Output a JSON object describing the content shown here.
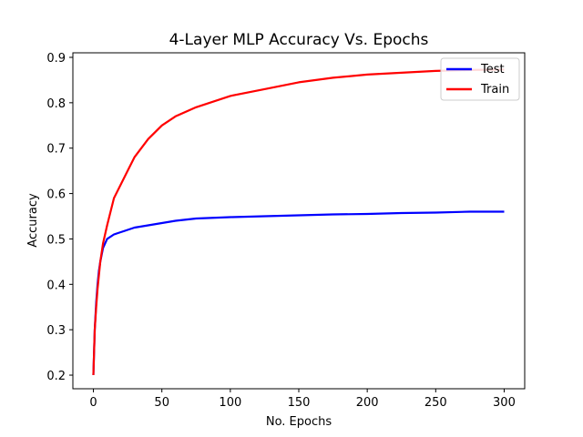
{
  "chart_data": {
    "type": "line",
    "title": "4-Layer MLP Accuracy Vs. Epochs",
    "xlabel": "No. Epochs",
    "ylabel": "Accuracy",
    "xlim": [
      -15,
      315
    ],
    "ylim": [
      0.17,
      0.91
    ],
    "xticks": [
      0,
      50,
      100,
      150,
      200,
      250,
      300
    ],
    "yticks": [
      0.2,
      0.3,
      0.4,
      0.5,
      0.6,
      0.7,
      0.8,
      0.9
    ],
    "grid": false,
    "legend_position": "top-right",
    "series": [
      {
        "name": "Test",
        "color": "#0000ff",
        "x": [
          0,
          1,
          2,
          3,
          4,
          5,
          7,
          10,
          15,
          20,
          25,
          30,
          40,
          50,
          60,
          75,
          100,
          125,
          150,
          175,
          200,
          225,
          250,
          275,
          300
        ],
        "y": [
          0.2,
          0.3,
          0.36,
          0.4,
          0.43,
          0.45,
          0.48,
          0.5,
          0.51,
          0.515,
          0.52,
          0.525,
          0.53,
          0.535,
          0.54,
          0.545,
          0.548,
          0.55,
          0.552,
          0.554,
          0.555,
          0.557,
          0.558,
          0.56,
          0.56
        ]
      },
      {
        "name": "Train",
        "color": "#ff0000",
        "x": [
          0,
          1,
          2,
          3,
          4,
          5,
          7,
          10,
          15,
          20,
          25,
          30,
          40,
          50,
          60,
          75,
          100,
          125,
          150,
          175,
          200,
          225,
          250,
          275,
          300
        ],
        "y": [
          0.2,
          0.3,
          0.35,
          0.39,
          0.42,
          0.45,
          0.49,
          0.53,
          0.59,
          0.62,
          0.65,
          0.68,
          0.72,
          0.75,
          0.77,
          0.79,
          0.815,
          0.83,
          0.845,
          0.855,
          0.862,
          0.866,
          0.87,
          0.872,
          0.873
        ]
      }
    ]
  }
}
